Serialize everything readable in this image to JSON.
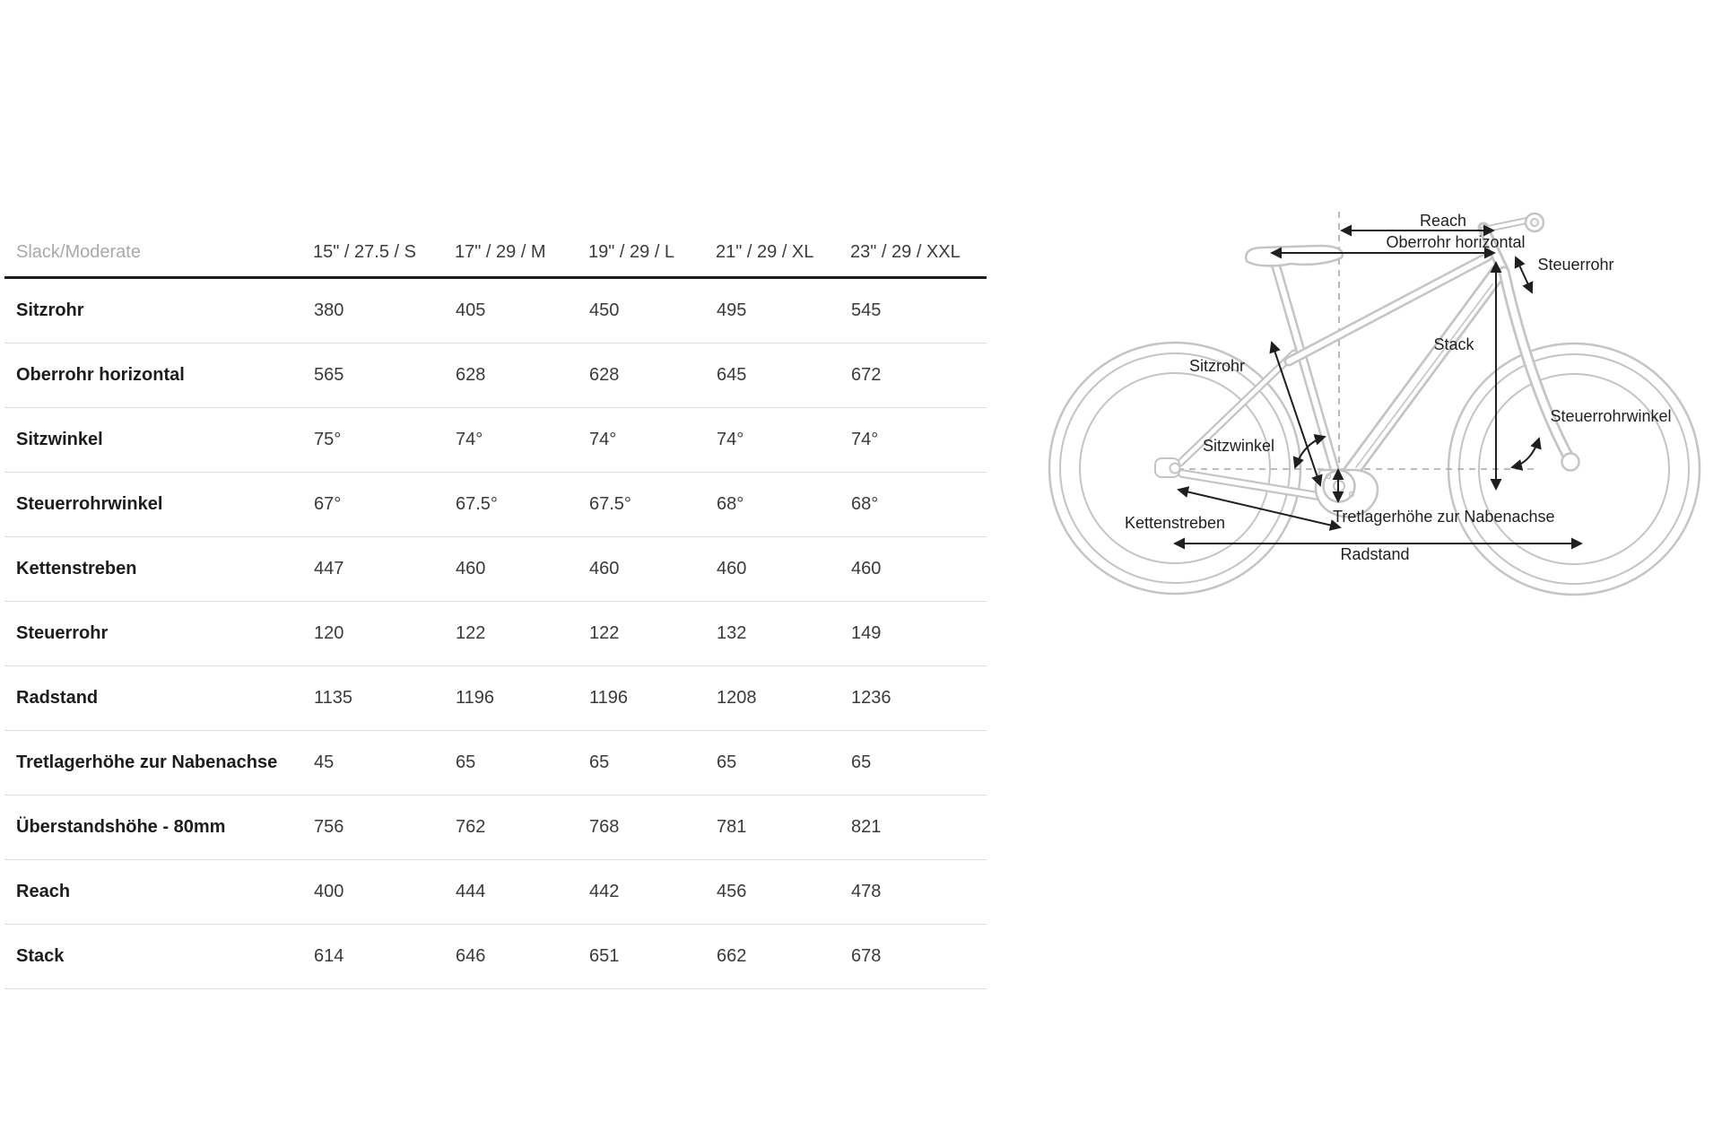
{
  "chart_data": {
    "type": "table",
    "title": "Slack/Moderate",
    "columns": [
      "15\" / 27.5 / S",
      "17\" / 29 / M",
      "19\" / 29 / L",
      "21\" / 29 / XL",
      "23\" / 29 / XXL"
    ],
    "rows": [
      {
        "label": "Sitzrohr",
        "values": [
          "380",
          "405",
          "450",
          "495",
          "545"
        ]
      },
      {
        "label": "Oberrohr horizontal",
        "values": [
          "565",
          "628",
          "628",
          "645",
          "672"
        ]
      },
      {
        "label": "Sitzwinkel",
        "values": [
          "75°",
          "74°",
          "74°",
          "74°",
          "74°"
        ]
      },
      {
        "label": "Steuerrohrwinkel",
        "values": [
          "67°",
          "67.5°",
          "67.5°",
          "68°",
          "68°"
        ]
      },
      {
        "label": "Kettenstreben",
        "values": [
          "447",
          "460",
          "460",
          "460",
          "460"
        ]
      },
      {
        "label": "Steuerrohr",
        "values": [
          "120",
          "122",
          "122",
          "132",
          "149"
        ]
      },
      {
        "label": "Radstand",
        "values": [
          "1135",
          "1196",
          "1196",
          "1208",
          "1236"
        ]
      },
      {
        "label": "Tretlagerhöhe zur Nabenachse",
        "values": [
          "45",
          "65",
          "65",
          "65",
          "65"
        ]
      },
      {
        "label": "Überstandshöhe - 80mm",
        "values": [
          "756",
          "762",
          "768",
          "781",
          "821"
        ]
      },
      {
        "label": "Reach",
        "values": [
          "400",
          "444",
          "442",
          "456",
          "478"
        ]
      },
      {
        "label": "Stack",
        "values": [
          "614",
          "646",
          "651",
          "662",
          "678"
        ]
      }
    ],
    "layout": {
      "grid": "horizontal row separators",
      "header_rule": "thick black"
    }
  },
  "diagram": {
    "labels": {
      "reach": "Reach",
      "oberrohr": "Oberrohr horizontal",
      "steuerrohr": "Steuerrohr",
      "sitzrohr": "Sitzrohr",
      "stack": "Stack",
      "sitzwinkel": "Sitzwinkel",
      "steuerrohrwinkel": "Steuerrohrwinkel",
      "tretlagerhoehe": "Tretlagerhöhe zur Nabenachse",
      "kettenstreben": "Kettenstreben",
      "radstand": "Radstand"
    }
  },
  "colors": {
    "table_header_muted": "#a9a9a9",
    "table_text": "#3a3a3a",
    "table_label": "#1d1d1d",
    "header_rule": "#1a1a1a",
    "row_separator": "#dcdcdc",
    "bike_outline": "#c4c4c4",
    "annotation": "#1f1f1f",
    "dashed_line": "#a6a6a6",
    "background": "#ffffff"
  }
}
